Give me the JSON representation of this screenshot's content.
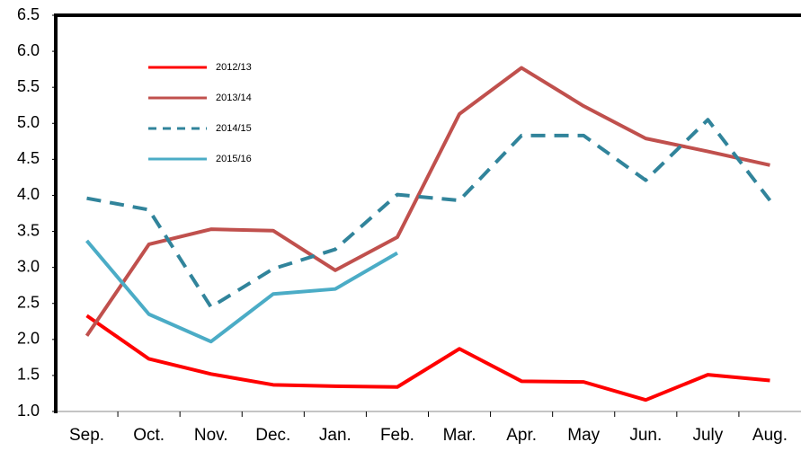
{
  "chart_data": {
    "type": "line",
    "categories": [
      "Sep.",
      "Oct.",
      "Nov.",
      "Dec.",
      "Jan.",
      "Feb.",
      "Mar.",
      "Apr.",
      "May",
      "Jun.",
      "July",
      "Aug."
    ],
    "series": [
      {
        "name": "2012/13",
        "color": "#ff0000",
        "values": [
          2.33,
          1.73,
          1.52,
          1.37,
          1.35,
          1.34,
          1.87,
          1.42,
          1.41,
          1.16,
          1.51,
          1.43
        ]
      },
      {
        "name": "2013/14",
        "color": "#c0504d",
        "values": [
          2.05,
          3.32,
          3.53,
          3.51,
          2.96,
          3.42,
          5.13,
          5.77,
          5.24,
          4.79,
          4.61,
          4.42
        ]
      },
      {
        "name": "2014/15",
        "color": "#31849b",
        "dashed": true,
        "values": [
          3.96,
          3.8,
          2.45,
          2.98,
          3.25,
          4.01,
          3.93,
          4.83,
          4.83,
          4.21,
          5.05,
          3.93
        ]
      },
      {
        "name": "2015/16",
        "color": "#4bacc6",
        "values": [
          3.37,
          2.35,
          1.97,
          2.63,
          2.7,
          3.2,
          null,
          null,
          null,
          null,
          null,
          null
        ]
      }
    ],
    "ylim": [
      1.0,
      6.5
    ],
    "yticks": [
      {
        "value": 1.0,
        "label": "1.0"
      },
      1.5,
      {
        "value": 2.0,
        "label": "2.0"
      },
      2.5,
      {
        "value": 3.0,
        "label": "3.0"
      },
      3.5,
      {
        "value": 4.0,
        "label": "4.0"
      },
      4.5,
      {
        "value": 5.0,
        "label": "5.0"
      },
      5.5,
      {
        "value": 6.0,
        "label": "6.0"
      },
      {
        "value": 6.5,
        "label": "6.5"
      }
    ],
    "legend": "upper left"
  }
}
